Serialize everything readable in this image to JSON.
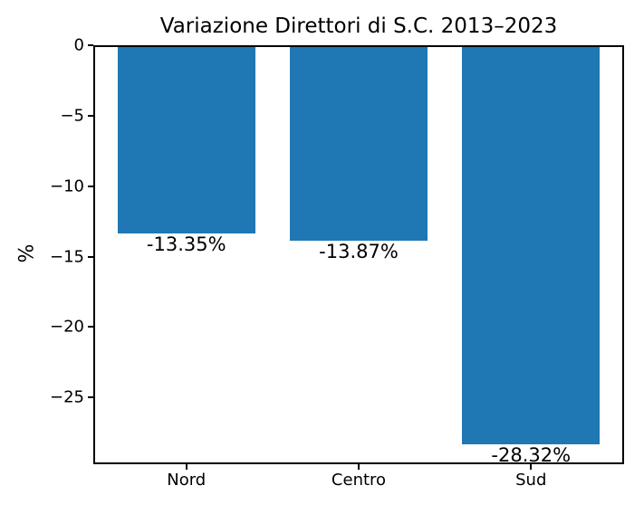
{
  "chart_data": {
    "type": "bar",
    "title": "Variazione Direttori di S.C. 2013–2023",
    "xlabel": "",
    "ylabel": "%",
    "categories": [
      "Nord",
      "Centro",
      "Sud"
    ],
    "values": [
      -13.35,
      -13.87,
      -28.32
    ],
    "bar_labels": [
      "-13.35%",
      "-13.87%",
      "-28.32%"
    ],
    "yticks": [
      0,
      -5,
      -10,
      -15,
      -20,
      -25
    ],
    "ytick_labels": [
      "0",
      "−5",
      "−10",
      "−15",
      "−20",
      "−25"
    ],
    "ylim": [
      -29.74,
      0
    ],
    "grid": false,
    "legend": null,
    "colors": {
      "bar": "#1f77b4",
      "axis": "#000000",
      "text": "#000000",
      "background": "#ffffff"
    }
  }
}
